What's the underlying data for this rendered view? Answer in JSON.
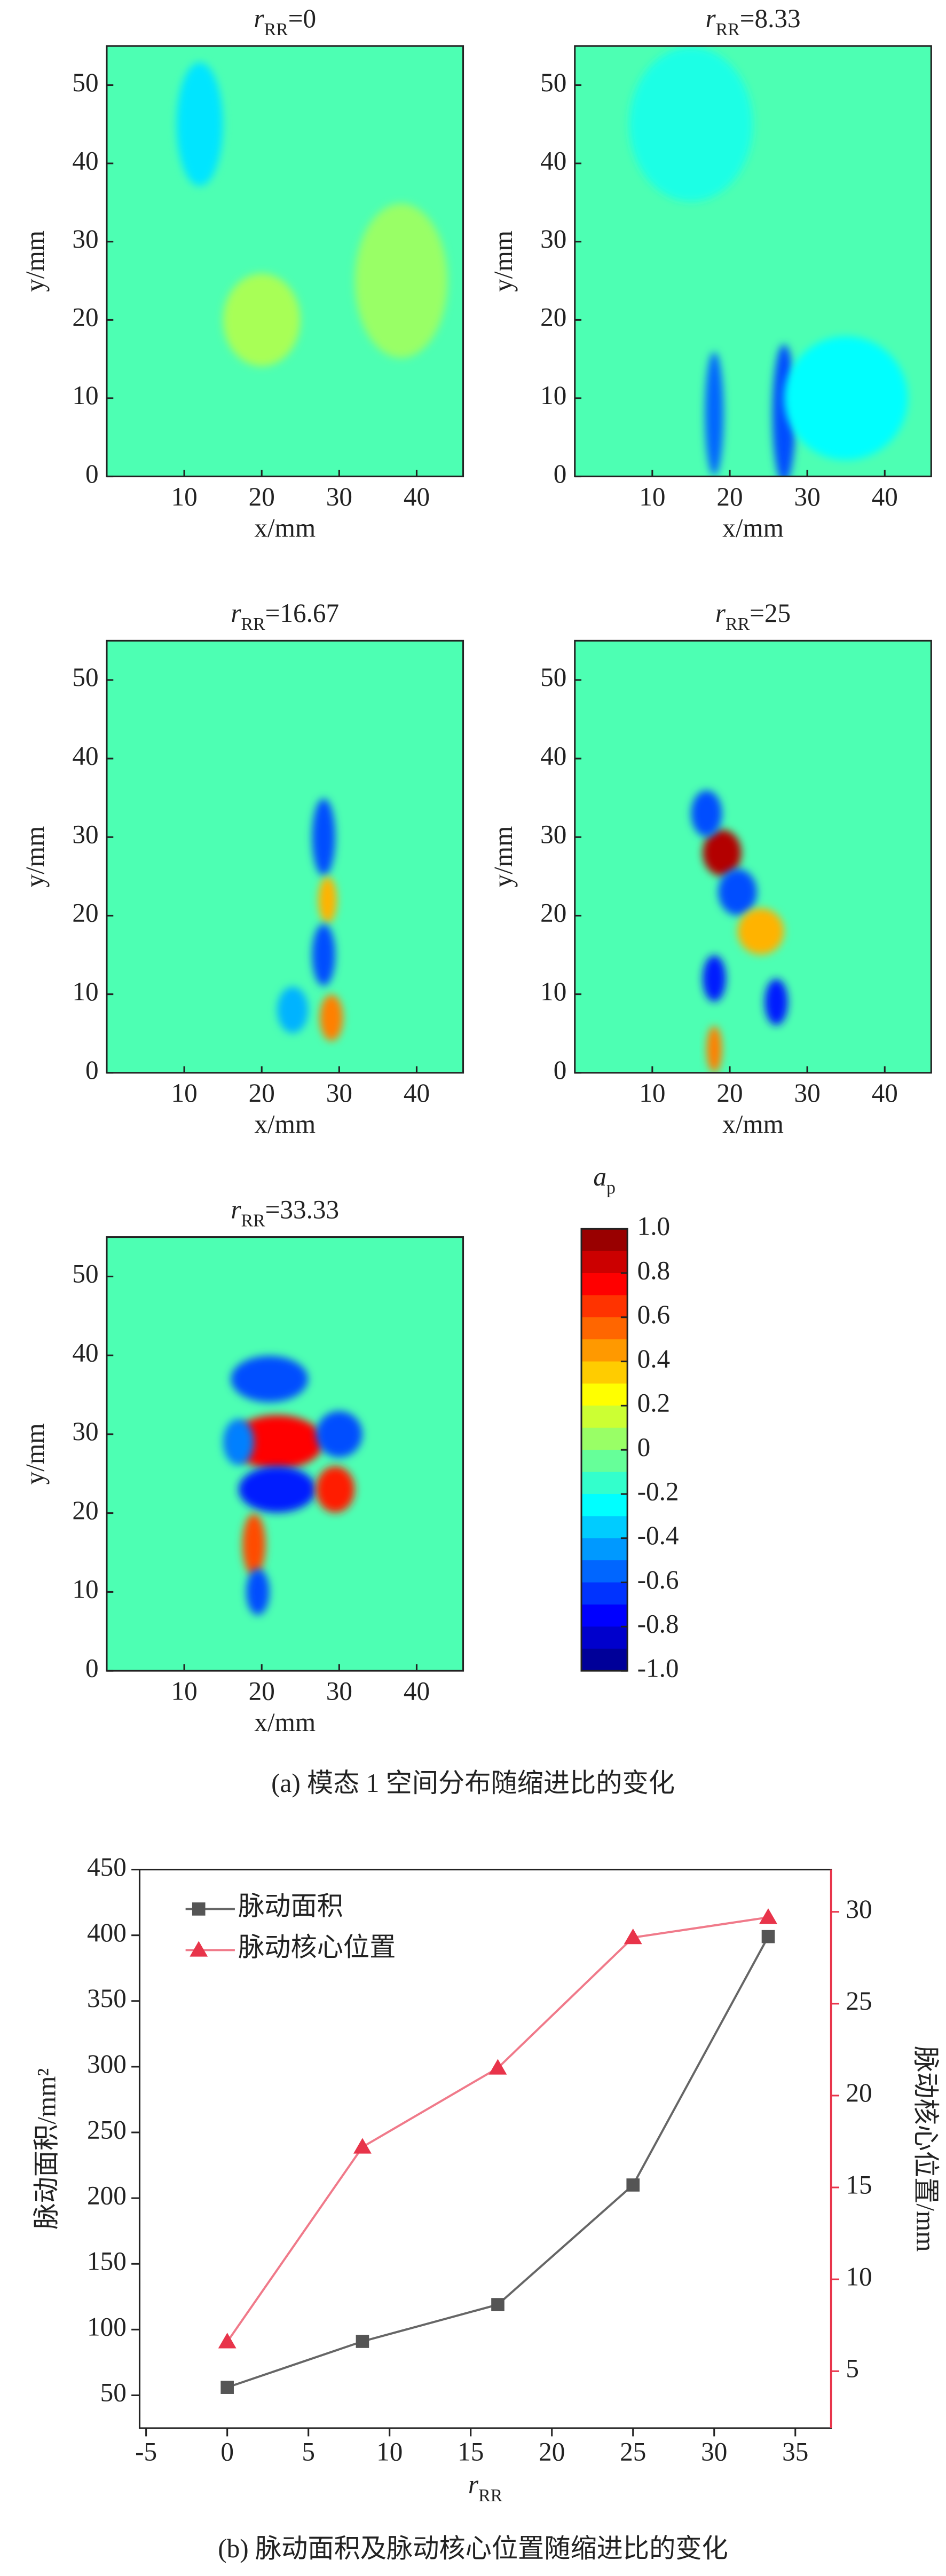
{
  "chart_data": [
    {
      "type": "heatmap",
      "title": [
        "r",
        "RR",
        "=0"
      ],
      "xlabel": "x/mm",
      "ylabel": "y/mm",
      "xlim": [
        0,
        46
      ],
      "ylim": [
        0,
        55
      ],
      "xticks": [
        10,
        20,
        30,
        40
      ],
      "yticks": [
        0,
        10,
        20,
        30,
        40,
        50
      ]
    },
    {
      "type": "heatmap",
      "title": [
        "r",
        "RR",
        "=8.33"
      ],
      "xlabel": "x/mm",
      "ylabel": "y/mm",
      "xlim": [
        0,
        46
      ],
      "ylim": [
        0,
        55
      ],
      "xticks": [
        10,
        20,
        30,
        40
      ],
      "yticks": [
        0,
        10,
        20,
        30,
        40,
        50
      ]
    },
    {
      "type": "heatmap",
      "title": [
        "r",
        "RR",
        "=16.67"
      ],
      "xlabel": "x/mm",
      "ylabel": "y/mm",
      "xlim": [
        0,
        46
      ],
      "ylim": [
        0,
        55
      ],
      "xticks": [
        10,
        20,
        30,
        40
      ],
      "yticks": [
        0,
        10,
        20,
        30,
        40,
        50
      ]
    },
    {
      "type": "heatmap",
      "title": [
        "r",
        "RR",
        "=25"
      ],
      "xlabel": "x/mm",
      "ylabel": "y/mm",
      "xlim": [
        0,
        46
      ],
      "ylim": [
        0,
        55
      ],
      "xticks": [
        10,
        20,
        30,
        40
      ],
      "yticks": [
        0,
        10,
        20,
        30,
        40,
        50
      ]
    },
    {
      "type": "heatmap",
      "title": [
        "r",
        "RR",
        "=33.33"
      ],
      "xlabel": "x/mm",
      "ylabel": "y/mm",
      "xlim": [
        0,
        46
      ],
      "ylim": [
        0,
        55
      ],
      "xticks": [
        10,
        20,
        30,
        40
      ],
      "yticks": [
        0,
        10,
        20,
        30,
        40,
        50
      ]
    },
    {
      "type": "colorbar",
      "title": [
        "a",
        "p"
      ],
      "colormap": "jet",
      "ylim": [
        -1,
        1
      ],
      "yticks": [
        {
          "value": 1,
          "label": "1.0"
        },
        0.8,
        0.6,
        0.4,
        0.2,
        0,
        -0.2,
        -0.4,
        -0.6,
        -0.8,
        {
          "value": -1,
          "label": "-1.0"
        }
      ]
    },
    {
      "type": "line",
      "xlabel": [
        "r",
        "RR"
      ],
      "ylabel": "脉动面积/mm²",
      "y2label": "脉动核心位置/mm",
      "x": [
        0,
        8.33,
        16.67,
        25,
        33.33
      ],
      "xlim": [
        -5.4,
        37.2
      ],
      "xticks": [
        -5,
        0,
        5,
        10,
        15,
        20,
        25,
        30,
        35
      ],
      "ylim": [
        25,
        450
      ],
      "yticks": [
        50,
        100,
        150,
        200,
        250,
        300,
        350,
        400,
        450
      ],
      "y2lim": [
        1.9,
        32.3
      ],
      "y2ticks": [
        5,
        10,
        15,
        20,
        25,
        30
      ],
      "y2color": "#e8344a",
      "legend": "upper left",
      "series": [
        {
          "name": "脉动面积",
          "color": "#555555",
          "line_color": "#666666",
          "marker": "square",
          "values": [
            56,
            91,
            119,
            210,
            399
          ]
        },
        {
          "name": "脉动核心位置",
          "color": "#e8344a",
          "line_color": "#f07a8a",
          "marker": "triangle",
          "axis": "y2",
          "values": [
            6.6,
            17.2,
            21.5,
            28.6,
            29.7
          ]
        }
      ]
    }
  ],
  "captions": [
    "(a) 模态 1 空间分布随缩进比的变化",
    "(b) 脉动面积及脉动核心位置随缩进比的变化"
  ]
}
